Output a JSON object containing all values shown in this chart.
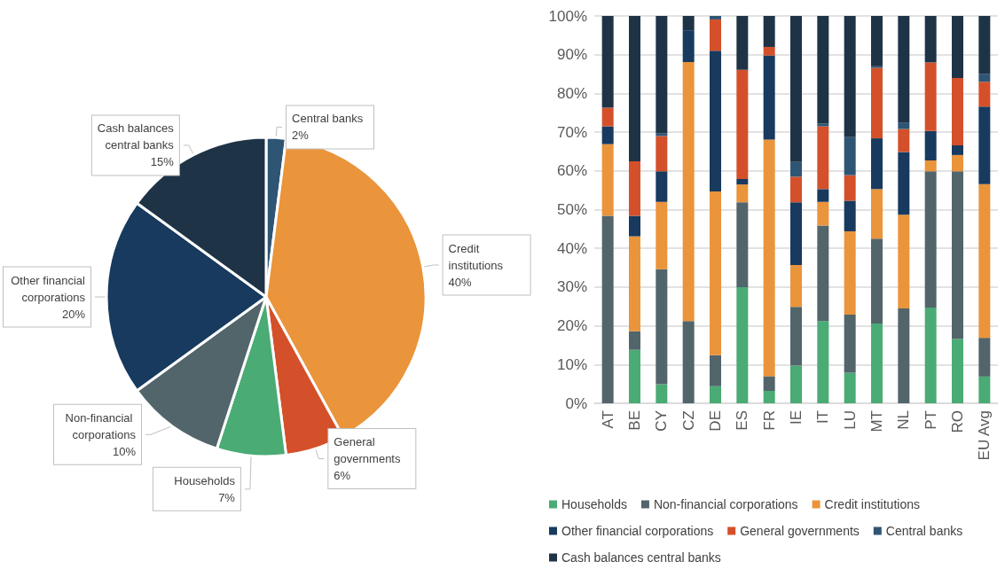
{
  "chart_data": [
    {
      "type": "pie",
      "categories": [
        "Central banks",
        "Credit institutions",
        "General governments",
        "Households",
        "Non-financial corporations",
        "Other financial corporations",
        "Cash balances central banks"
      ],
      "values": [
        2,
        40,
        6,
        7,
        10,
        20,
        15
      ],
      "value_labels": [
        "2%",
        "40%",
        "6%",
        "7%",
        "10%",
        "20%",
        "15%"
      ],
      "colors": [
        "#2f5575",
        "#ea943b",
        "#d4502a",
        "#4aab74",
        "#52656b",
        "#173a5e",
        "#1f3347"
      ]
    },
    {
      "type": "bar",
      "stacked": true,
      "categories": [
        "AT",
        "BE",
        "CY",
        "CZ",
        "DE",
        "ES",
        "FR",
        "IE",
        "IT",
        "LU",
        "MT",
        "NL",
        "PT",
        "RO",
        "EU Avg"
      ],
      "ylim": [
        0,
        100
      ],
      "yticks": [
        {
          "value": 0,
          "label": "0%"
        },
        {
          "value": 10,
          "label": "10%"
        },
        {
          "value": 20,
          "label": "20%"
        },
        {
          "value": 30,
          "label": "30%"
        },
        {
          "value": 40,
          "label": "40%"
        },
        {
          "value": 50,
          "label": "50%"
        },
        {
          "value": 60,
          "label": "60%"
        },
        {
          "value": 70,
          "label": "70%"
        },
        {
          "value": 80,
          "label": "80%"
        },
        {
          "value": 90,
          "label": "90%"
        },
        {
          "value": 100,
          "label": "100%"
        }
      ],
      "grid": "y",
      "legend": "bottom",
      "series": [
        {
          "name": "Households",
          "color": "#4aab74",
          "values": [
            0,
            13.8,
            4.9,
            0,
            4.4,
            30.0,
            3.2,
            9.7,
            21.2,
            7.9,
            20.6,
            0,
            24.7,
            16.6,
            6.9
          ]
        },
        {
          "name": "Non-financial corporations",
          "color": "#52656b",
          "values": [
            48.4,
            4.8,
            29.7,
            21.2,
            8.0,
            21.9,
            3.8,
            15.2,
            24.7,
            15.0,
            21.9,
            24.5,
            35.2,
            43.3,
            10.0
          ]
        },
        {
          "name": "Credit institutions",
          "color": "#ea943b",
          "values": [
            18.5,
            24.5,
            17.4,
            66.9,
            42.3,
            4.6,
            61.1,
            10.8,
            6.1,
            21.5,
            12.8,
            24.2,
            2.8,
            4.2,
            39.7
          ]
        },
        {
          "name": "Other financial corporations",
          "color": "#173a5e",
          "values": [
            4.6,
            5.3,
            7.9,
            8.2,
            36.3,
            1.4,
            21.7,
            16.2,
            3.3,
            7.9,
            13.1,
            16.2,
            7.6,
            2.5,
            20.0
          ]
        },
        {
          "name": "General governments",
          "color": "#d4502a",
          "values": [
            4.8,
            14.1,
            9.1,
            0,
            8.1,
            28.2,
            2.2,
            6.6,
            16.2,
            6.6,
            18.2,
            5.9,
            17.7,
            17.4,
            6.4
          ]
        },
        {
          "name": "Central banks",
          "color": "#2f5575",
          "values": [
            0,
            0,
            0.7,
            0,
            0.9,
            0,
            0,
            3.8,
            0.7,
            9.8,
            0.4,
            1.7,
            0,
            0,
            2.1
          ]
        },
        {
          "name": "Cash balances central banks",
          "color": "#1f3347",
          "values": [
            23.7,
            37.5,
            30.3,
            3.7,
            0,
            13.9,
            8.0,
            37.7,
            27.8,
            31.3,
            13.0,
            27.5,
            12.0,
            16.0,
            14.9
          ]
        }
      ]
    }
  ]
}
